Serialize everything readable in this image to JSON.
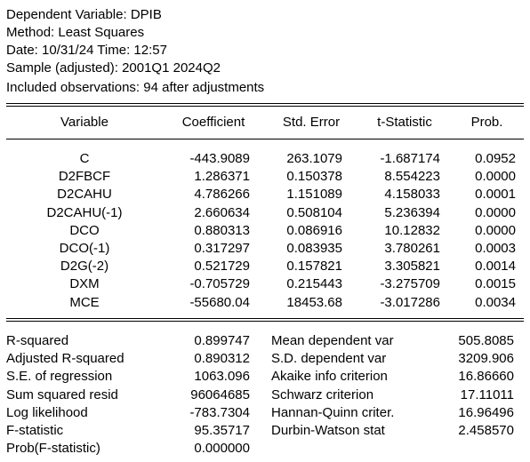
{
  "header": {
    "dependent_variable": "Dependent Variable: DPIB",
    "method": "Method: Least Squares",
    "date_time": "Date: 10/31/24   Time: 12:57",
    "sample": "Sample (adjusted): 2001Q1 2024Q2",
    "observations": "Included observations: 94 after adjustments"
  },
  "coef_table": {
    "columns": [
      "Variable",
      "Coefficient",
      "Std. Error",
      "t-Statistic",
      "Prob."
    ],
    "rows": [
      [
        "C",
        "-443.9089",
        "263.1079",
        "-1.687174",
        "0.0952"
      ],
      [
        "D2FBCF",
        "1.286371",
        "0.150378",
        "8.554223",
        "0.0000"
      ],
      [
        "D2CAHU",
        "4.786266",
        "1.151089",
        "4.158033",
        "0.0001"
      ],
      [
        "D2CAHU(-1)",
        "2.660634",
        "0.508104",
        "5.236394",
        "0.0000"
      ],
      [
        "DCO",
        "0.880313",
        "0.086916",
        "10.12832",
        "0.0000"
      ],
      [
        "DCO(-1)",
        "0.317297",
        "0.083935",
        "3.780261",
        "0.0003"
      ],
      [
        "D2G(-2)",
        "0.521729",
        "0.157821",
        "3.305821",
        "0.0014"
      ],
      [
        "DXM",
        "-0.705729",
        "0.215443",
        "-3.275709",
        "0.0015"
      ],
      [
        "MCE",
        "-55680.04",
        "18453.68",
        "-3.017286",
        "0.0034"
      ]
    ]
  },
  "stats": {
    "rows": [
      [
        "R-squared",
        "0.899747",
        "Mean dependent var",
        "505.8085"
      ],
      [
        "Adjusted R-squared",
        "0.890312",
        "S.D. dependent var",
        "3209.906"
      ],
      [
        "S.E. of regression",
        "1063.096",
        "Akaike info criterion",
        "16.86660"
      ],
      [
        "Sum squared resid",
        "96064685",
        "Schwarz criterion",
        "17.11011"
      ],
      [
        "Log likelihood",
        "-783.7304",
        "Hannan-Quinn criter.",
        "16.96496"
      ],
      [
        "F-statistic",
        "95.35717",
        "Durbin-Watson stat",
        "2.458570"
      ],
      [
        "Prob(F-statistic)",
        "0.000000",
        "",
        ""
      ]
    ]
  }
}
